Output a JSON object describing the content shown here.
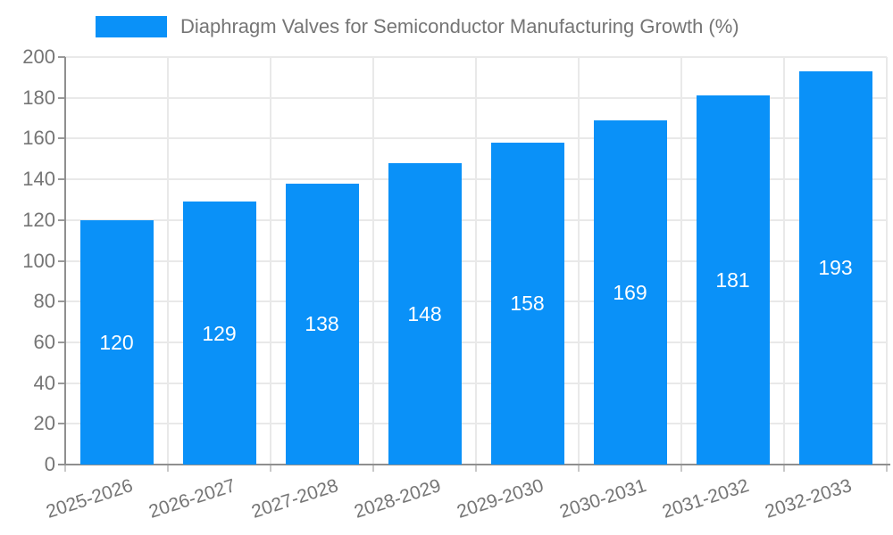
{
  "legend": {
    "label": "Diaphragm Valves for Semiconductor Manufacturing Growth (%)"
  },
  "chart_data": {
    "type": "bar",
    "title": "",
    "xlabel": "",
    "ylabel": "",
    "categories": [
      "2025-2026",
      "2026-2027",
      "2027-2028",
      "2028-2029",
      "2029-2030",
      "2030-2031",
      "2031-2032",
      "2032-2033"
    ],
    "series": [
      {
        "name": "Diaphragm Valves for Semiconductor Manufacturing Growth (%)",
        "values": [
          120,
          129,
          138,
          148,
          158,
          169,
          181,
          193
        ]
      }
    ],
    "bar_value_labels": [
      "120",
      "129",
      "138",
      "148",
      "158",
      "169",
      "181",
      "193"
    ],
    "ylim": [
      0,
      200
    ],
    "ytick_step": 20,
    "ytick_labels": [
      "0",
      "20",
      "40",
      "60",
      "80",
      "100",
      "120",
      "140",
      "160",
      "180",
      "200"
    ],
    "grid": true,
    "legend_position": "top-left",
    "colors": {
      "bar": "#0a91f8",
      "bar_value_text": "#ffffff",
      "axis_text": "#757575",
      "grid": "#e9e9e9",
      "axis_line": "#8f8f8f"
    }
  }
}
